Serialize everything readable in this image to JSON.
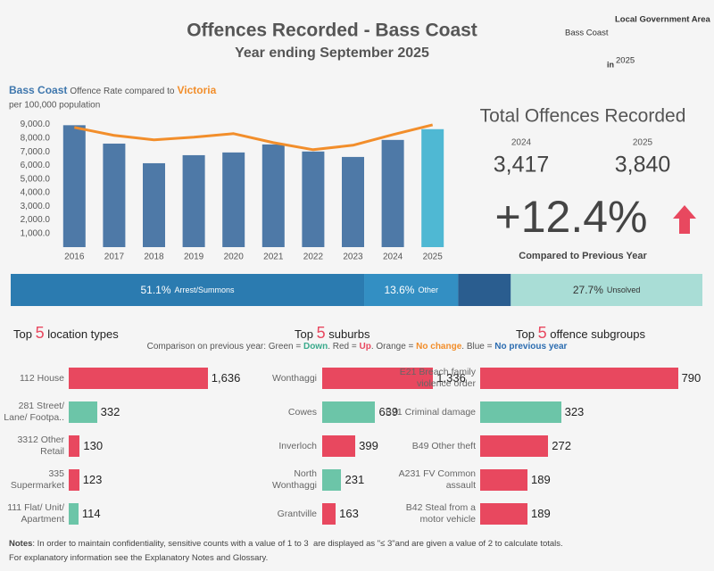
{
  "header": {
    "title": "Offences Recorded - Bass Coast",
    "subtitle": "Year ending September 2025"
  },
  "filters": {
    "label": "Local Government Area",
    "value": "Bass Coast",
    "period_prefix": "in",
    "period": "2025"
  },
  "kpi": {
    "title": "Total Offences Recorded",
    "previous_year": "2024",
    "previous_total": "3,417",
    "current_year": "2025",
    "current_total": "3,840",
    "change": "+12.4%",
    "change_caption": "Compared to Previous Year"
  },
  "legend": {
    "parts": [
      {
        "text": "Comparison on previous year: Green = ",
        "color": "#555555"
      },
      {
        "text": "Down",
        "color": "#3aaa8c"
      },
      {
        "text": ". Red = ",
        "color": "#555555"
      },
      {
        "text": "Up",
        "color": "#e8485f"
      },
      {
        "text": ". Orange = ",
        "color": "#555555"
      },
      {
        "text": "No change",
        "color": "#f28e2b"
      },
      {
        "text": ". Blue = ",
        "color": "#555555"
      },
      {
        "text": "No previous year",
        "color": "#2b6cb0"
      }
    ]
  },
  "chart_data": [
    {
      "type": "bar-line",
      "title": "Offence Rate compared to",
      "subtitle": "per 100,000 population",
      "categories": [
        "2016",
        "2017",
        "2018",
        "2019",
        "2020",
        "2021",
        "2022",
        "2023",
        "2024",
        "2025"
      ],
      "series": [
        {
          "name": "Bass Coast",
          "type": "bar",
          "color": "#3f77ad",
          "colors": [
            "#4e79a7",
            "#4e79a7",
            "#4e79a7",
            "#4e79a7",
            "#4e79a7",
            "#4e79a7",
            "#4e79a7",
            "#4e79a7",
            "#4e79a7",
            "#4fb8d3"
          ],
          "values": [
            8950,
            7600,
            6160,
            6750,
            6950,
            7540,
            7020,
            6620,
            7870,
            8660
          ]
        },
        {
          "name": "Victoria",
          "type": "line",
          "color": "#f28e2b",
          "values": [
            8790,
            8200,
            7870,
            8070,
            8330,
            7670,
            7150,
            7480,
            8260,
            8980
          ]
        }
      ],
      "ylim": [
        0,
        9300
      ],
      "yticks": [
        {
          "value": 1000,
          "label": "1,000.0"
        },
        {
          "value": 2000,
          "label": "2,000.0"
        },
        {
          "value": 3000,
          "label": "3,000.0"
        },
        {
          "value": 4000,
          "label": "4,000.0"
        },
        {
          "value": 5000,
          "label": "5,000.0"
        },
        {
          "value": 6000,
          "label": "6,000.0"
        },
        {
          "value": 7000,
          "label": "7,000.0"
        },
        {
          "value": 8000,
          "label": "8,000.0"
        },
        {
          "value": 9000,
          "label": "9,000.0"
        }
      ]
    },
    {
      "type": "stacked-bar-100",
      "categories": [
        "Arrest/Summons",
        "Other",
        null,
        "Unsolved"
      ],
      "values": [
        51.1,
        13.6,
        7.6,
        27.7
      ],
      "value_labels": [
        "51.1%",
        "13.6%",
        null,
        "27.7%"
      ],
      "colors": [
        "#2b7bb0",
        "#338fc3",
        "#2a5d8f",
        "#a9ddd6"
      ],
      "label_colors": [
        "#ffffff",
        "#ffffff",
        "#ffffff",
        "#333333"
      ],
      "xlim": [
        0,
        100
      ]
    },
    {
      "type": "hbar",
      "title_prefix": "Top",
      "title_number": "5",
      "title_suffix": "location types",
      "categories": [
        "112 House",
        "281 Street/ Lane/ Footpa..",
        "3312 Other Retail",
        "335 Supermarket",
        "111 Flat/ Unit/ Apartment"
      ],
      "values": [
        1636,
        332,
        130,
        123,
        114
      ],
      "value_labels": [
        "1,636",
        "332",
        "130",
        "123",
        "114"
      ],
      "colors": [
        "#e8485f",
        "#6cc5a8",
        "#e8485f",
        "#e8485f",
        "#6cc5a8"
      ],
      "xlim": [
        0,
        2100
      ]
    },
    {
      "type": "hbar",
      "title_prefix": "Top",
      "title_number": "5",
      "title_suffix": "suburbs",
      "categories": [
        "Wonthaggi",
        "Cowes",
        "Inverloch",
        "North Wonthaggi",
        "Grantville"
      ],
      "values": [
        1336,
        639,
        399,
        231,
        163
      ],
      "value_labels": [
        "1,336",
        "639",
        "399",
        "231",
        "163"
      ],
      "colors": [
        "#e8485f",
        "#6cc5a8",
        "#e8485f",
        "#6cc5a8",
        "#e8485f"
      ],
      "xlim": [
        0,
        2150
      ]
    },
    {
      "type": "hbar",
      "title_prefix": "Top",
      "title_number": "5",
      "title_suffix": "offence subgroups",
      "categories": [
        "E21 Breach family violence order",
        "B21 Criminal damage",
        "B49 Other theft",
        "A231 FV Common assault",
        "B42 Steal from a motor vehicle"
      ],
      "values": [
        790,
        323,
        272,
        189,
        189
      ],
      "colors": [
        "#e8485f",
        "#6cc5a8",
        "#e8485f",
        "#e8485f",
        "#e8485f"
      ],
      "xlim": [
        0,
        820
      ]
    }
  ],
  "notes": {
    "label": "Notes",
    "text": ": In order to maintain confidentiality, sensitive counts with a value of 1 to 3  are displayed as \"≤ 3\"and are given a value of 2 to calculate totals.",
    "line2": "For explanatory information see the Explanatory Notes and Glossary."
  }
}
